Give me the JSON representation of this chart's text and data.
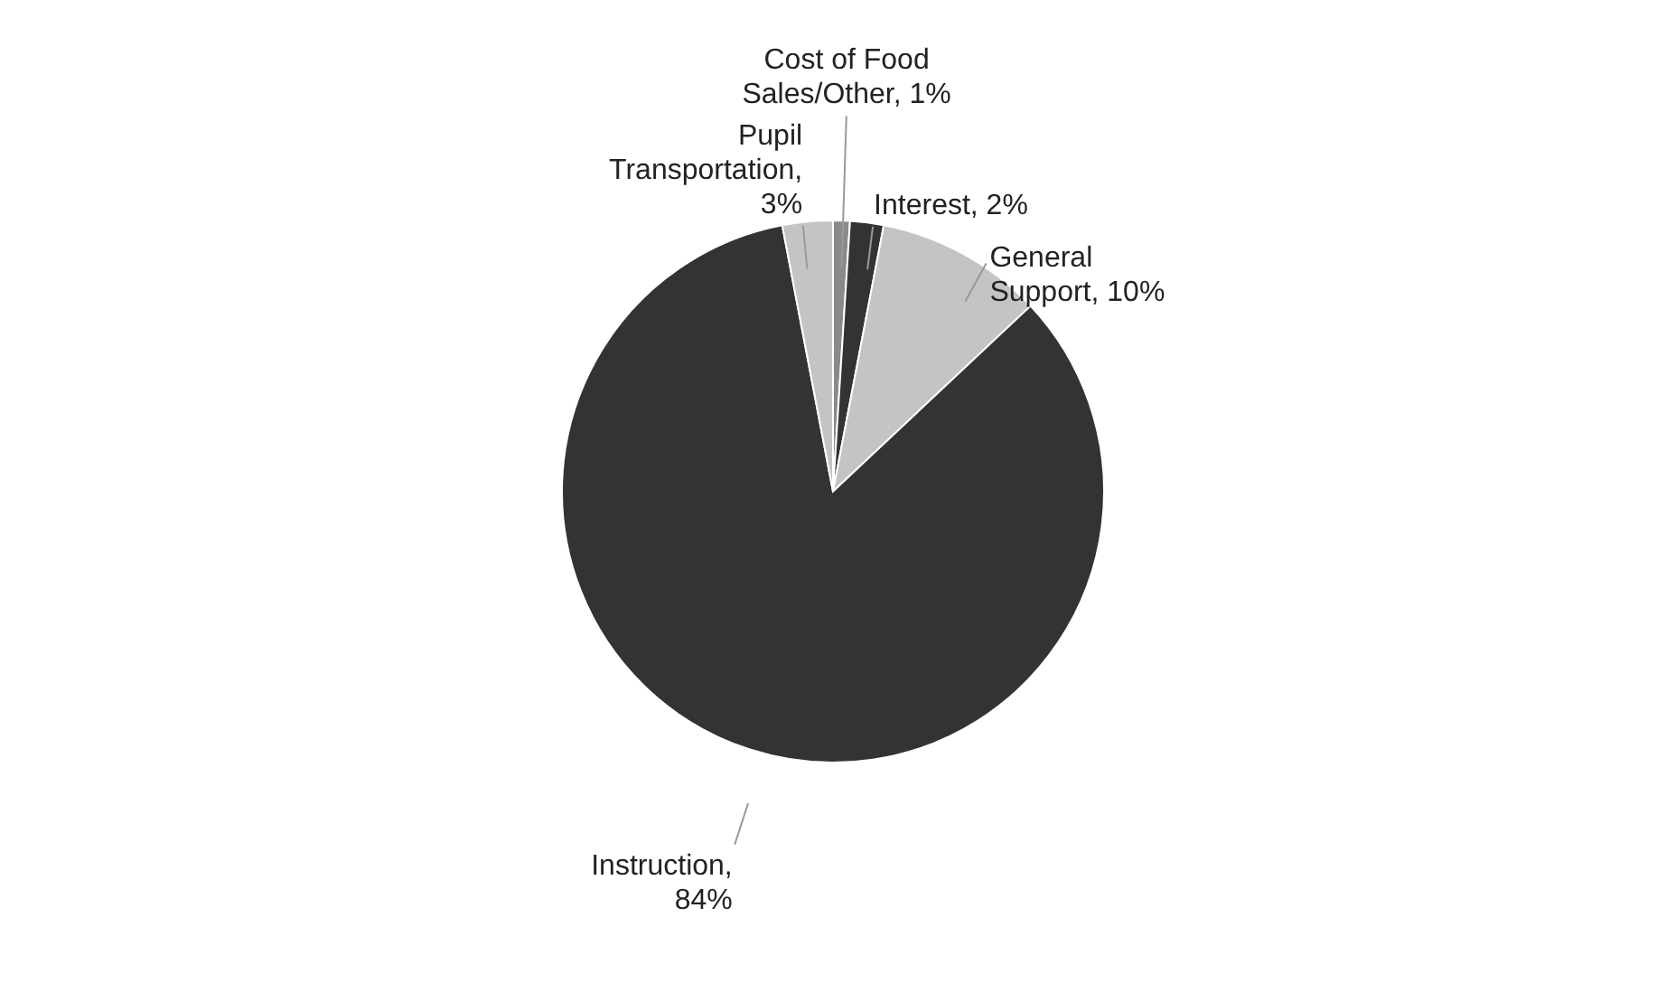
{
  "chart_data": {
    "type": "pie",
    "categories": [
      "Cost of Food Sales/Other, 1%",
      "Interest, 2%",
      "General Support, 10%",
      "Instruction, 84%",
      "Pupil Transportation, 3%"
    ],
    "values": [
      1,
      2,
      10,
      84,
      3
    ],
    "colors": [
      "#8a8a8a",
      "#333333",
      "#c4c4c4",
      "#333333",
      "#c4c4c4"
    ]
  }
}
